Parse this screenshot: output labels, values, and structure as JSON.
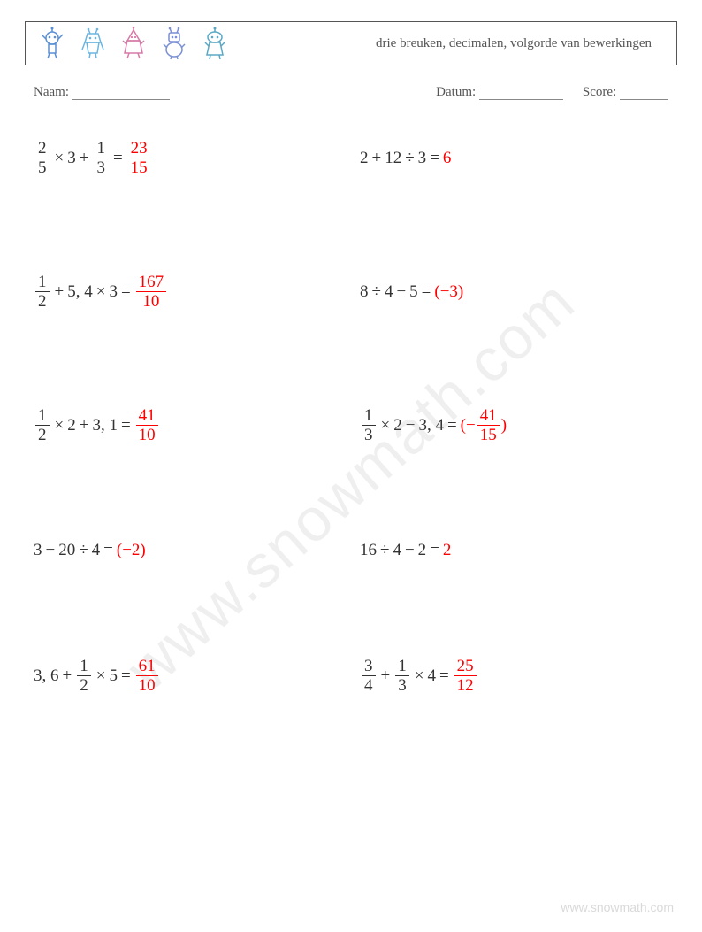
{
  "header": {
    "title": "drie breuken, decimalen, volgorde van bewerkingen",
    "icon_colors": [
      "#5a8fd4",
      "#6bb5e0",
      "#d67aa8",
      "#7a8fd4",
      "#5aa8c4"
    ]
  },
  "info": {
    "name_label": "Naam:",
    "date_label": "Datum:",
    "score_label": "Score:",
    "name_underline_width": 110,
    "date_underline_width": 95,
    "score_underline_width": 55
  },
  "problems": [
    {
      "col": 0,
      "parts": [
        {
          "t": "frac",
          "num": "2",
          "den": "5"
        },
        {
          "t": "op",
          "v": "×"
        },
        {
          "t": "txt",
          "v": "3"
        },
        {
          "t": "op",
          "v": "+"
        },
        {
          "t": "frac",
          "num": "1",
          "den": "3"
        },
        {
          "t": "op",
          "v": "="
        },
        {
          "t": "ans",
          "parts": [
            {
              "t": "frac",
              "num": "23",
              "den": "15"
            }
          ]
        }
      ]
    },
    {
      "col": 1,
      "parts": [
        {
          "t": "txt",
          "v": "2"
        },
        {
          "t": "op",
          "v": "+"
        },
        {
          "t": "txt",
          "v": "12"
        },
        {
          "t": "op",
          "v": "÷"
        },
        {
          "t": "txt",
          "v": "3"
        },
        {
          "t": "op",
          "v": "="
        },
        {
          "t": "ans",
          "parts": [
            {
              "t": "txt",
              "v": "6"
            }
          ]
        }
      ]
    },
    {
      "col": 0,
      "parts": [
        {
          "t": "frac",
          "num": "1",
          "den": "2"
        },
        {
          "t": "op",
          "v": "+"
        },
        {
          "t": "txt",
          "v": "5, 4"
        },
        {
          "t": "op",
          "v": "×"
        },
        {
          "t": "txt",
          "v": "3"
        },
        {
          "t": "op",
          "v": "="
        },
        {
          "t": "ans",
          "parts": [
            {
              "t": "frac",
              "num": "167",
              "den": "10"
            }
          ]
        }
      ]
    },
    {
      "col": 1,
      "parts": [
        {
          "t": "txt",
          "v": "8"
        },
        {
          "t": "op",
          "v": "÷"
        },
        {
          "t": "txt",
          "v": "4"
        },
        {
          "t": "op",
          "v": "−"
        },
        {
          "t": "txt",
          "v": "5"
        },
        {
          "t": "op",
          "v": "="
        },
        {
          "t": "ans",
          "parts": [
            {
              "t": "txt",
              "v": "(−3)"
            }
          ]
        }
      ]
    },
    {
      "col": 0,
      "parts": [
        {
          "t": "frac",
          "num": "1",
          "den": "2"
        },
        {
          "t": "op",
          "v": "×"
        },
        {
          "t": "txt",
          "v": "2"
        },
        {
          "t": "op",
          "v": "+"
        },
        {
          "t": "txt",
          "v": "3, 1"
        },
        {
          "t": "op",
          "v": "="
        },
        {
          "t": "ans",
          "parts": [
            {
              "t": "frac",
              "num": "41",
              "den": "10"
            }
          ]
        }
      ]
    },
    {
      "col": 1,
      "parts": [
        {
          "t": "frac",
          "num": "1",
          "den": "3"
        },
        {
          "t": "op",
          "v": "×"
        },
        {
          "t": "txt",
          "v": "2"
        },
        {
          "t": "op",
          "v": "−"
        },
        {
          "t": "txt",
          "v": "3, 4"
        },
        {
          "t": "op",
          "v": "="
        },
        {
          "t": "ans",
          "parts": [
            {
              "t": "txt",
              "v": "(−"
            },
            {
              "t": "frac",
              "num": "41",
              "den": "15"
            },
            {
              "t": "txt",
              "v": ")"
            }
          ]
        }
      ]
    },
    {
      "col": 0,
      "parts": [
        {
          "t": "txt",
          "v": "3"
        },
        {
          "t": "op",
          "v": "−"
        },
        {
          "t": "txt",
          "v": "20"
        },
        {
          "t": "op",
          "v": "÷"
        },
        {
          "t": "txt",
          "v": "4"
        },
        {
          "t": "op",
          "v": "="
        },
        {
          "t": "ans",
          "parts": [
            {
              "t": "txt",
              "v": "(−2)"
            }
          ]
        }
      ]
    },
    {
      "col": 1,
      "parts": [
        {
          "t": "txt",
          "v": "16"
        },
        {
          "t": "op",
          "v": "÷"
        },
        {
          "t": "txt",
          "v": "4"
        },
        {
          "t": "op",
          "v": "−"
        },
        {
          "t": "txt",
          "v": "2"
        },
        {
          "t": "op",
          "v": "="
        },
        {
          "t": "ans",
          "parts": [
            {
              "t": "txt",
              "v": "2"
            }
          ]
        }
      ]
    },
    {
      "col": 0,
      "parts": [
        {
          "t": "txt",
          "v": "3, 6"
        },
        {
          "t": "op",
          "v": "+"
        },
        {
          "t": "frac",
          "num": "1",
          "den": "2"
        },
        {
          "t": "op",
          "v": "×"
        },
        {
          "t": "txt",
          "v": "5"
        },
        {
          "t": "op",
          "v": "="
        },
        {
          "t": "ans",
          "parts": [
            {
              "t": "frac",
              "num": "61",
              "den": "10"
            }
          ]
        }
      ]
    },
    {
      "col": 1,
      "parts": [
        {
          "t": "frac",
          "num": "3",
          "den": "4"
        },
        {
          "t": "op",
          "v": "+"
        },
        {
          "t": "frac",
          "num": "1",
          "den": "3"
        },
        {
          "t": "op",
          "v": "×"
        },
        {
          "t": "txt",
          "v": "4"
        },
        {
          "t": "op",
          "v": "="
        },
        {
          "t": "ans",
          "parts": [
            {
              "t": "frac",
              "num": "25",
              "den": "12"
            }
          ]
        }
      ]
    }
  ],
  "watermark": "www.snowmath.com",
  "footer": "www.snowmath.com",
  "colors": {
    "text": "#333333",
    "answer": "#ff0000",
    "border": "#555555",
    "watermark": "rgba(120,120,120,0.12)"
  }
}
